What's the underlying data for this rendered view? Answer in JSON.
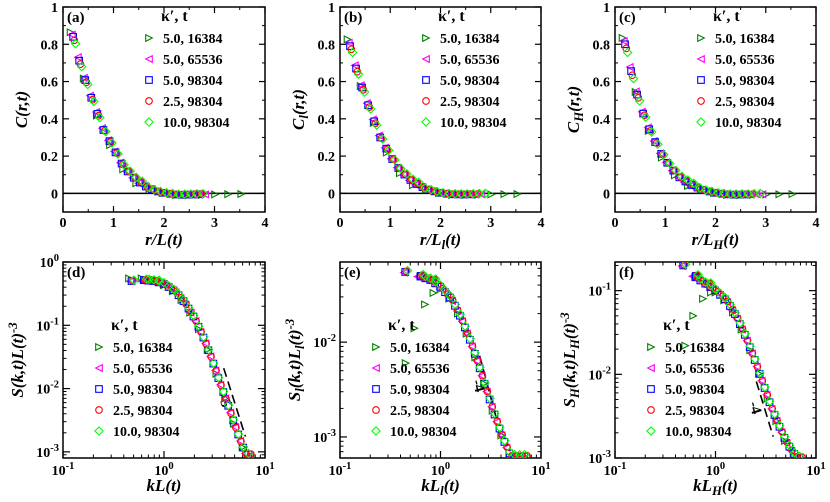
{
  "chart_data": {
    "type": "scatter",
    "legend_title": "κ′, t",
    "series": [
      {
        "name": "5.0, 16384",
        "color": "#008000",
        "marker": "triangle-right"
      },
      {
        "name": "5.0, 65536",
        "color": "#ff00ff",
        "marker": "triangle-left"
      },
      {
        "name": "5.0, 98304",
        "color": "#0000ff",
        "marker": "square"
      },
      {
        "name": "2.5, 98304",
        "color": "#ff0000",
        "marker": "circle"
      },
      {
        "name": "10.0, 98304",
        "color": "#00ff00",
        "marker": "diamond"
      }
    ],
    "panels": [
      {
        "label": "(a)",
        "scale": "linear",
        "xlabel": "r/L(t)",
        "ylabel": "C(r,t)",
        "xlim": [
          0,
          4
        ],
        "ylim": [
          -0.1,
          1
        ],
        "xticks": [
          "0",
          "1",
          "2",
          "3",
          "4"
        ],
        "yticks": [
          "0",
          "0.2",
          "0.4",
          "0.6",
          "0.8",
          "1"
        ],
        "curve": [
          [
            0,
            1.0
          ],
          [
            0.2,
            0.84
          ],
          [
            0.35,
            0.68
          ],
          [
            0.55,
            0.52
          ],
          [
            0.8,
            0.34
          ],
          [
            1.0,
            0.24
          ],
          [
            1.2,
            0.14
          ],
          [
            1.45,
            0.07
          ],
          [
            1.65,
            0.035
          ],
          [
            1.85,
            0.012
          ],
          [
            2.05,
            0.0
          ],
          [
            2.3,
            -0.008
          ],
          [
            2.6,
            -0.006
          ],
          [
            2.9,
            -0.003
          ],
          [
            3.3,
            -0.001
          ],
          [
            3.7,
            0.0
          ]
        ],
        "xmax": [
          3.7,
          2.9,
          2.75,
          2.8,
          2.8
        ]
      },
      {
        "label": "(b)",
        "scale": "linear",
        "xlabel": "r/L_l(t)",
        "ylabel": "C_l(r,t)",
        "xlim": [
          0,
          4
        ],
        "ylim": [
          -0.1,
          1
        ],
        "xticks": [
          "0",
          "1",
          "2",
          "3",
          "4"
        ],
        "yticks": [
          "0",
          "0.2",
          "0.4",
          "0.6",
          "0.8",
          "1"
        ],
        "curve": [
          [
            0,
            1.0
          ],
          [
            0.2,
            0.79
          ],
          [
            0.35,
            0.64
          ],
          [
            0.55,
            0.48
          ],
          [
            0.8,
            0.3
          ],
          [
            1.0,
            0.2
          ],
          [
            1.2,
            0.12
          ],
          [
            1.45,
            0.06
          ],
          [
            1.7,
            0.025
          ],
          [
            1.95,
            0.005
          ],
          [
            2.2,
            -0.005
          ],
          [
            2.5,
            -0.006
          ],
          [
            2.8,
            -0.004
          ],
          [
            3.2,
            -0.001
          ],
          [
            3.7,
            0.0
          ]
        ],
        "xmax": [
          3.7,
          2.9,
          2.6,
          2.8,
          2.9
        ]
      },
      {
        "label": "(c)",
        "scale": "linear",
        "xlabel": "r/L_H(t)",
        "ylabel": "C_H(r,t)",
        "xlim": [
          0,
          4
        ],
        "ylim": [
          -0.1,
          1
        ],
        "xticks": [
          "0",
          "1",
          "2",
          "3",
          "4"
        ],
        "yticks": [
          "0",
          "0.2",
          "0.4",
          "0.6",
          "0.8",
          "1"
        ],
        "curve": [
          [
            0,
            1.0
          ],
          [
            0.2,
            0.8
          ],
          [
            0.35,
            0.62
          ],
          [
            0.5,
            0.47
          ],
          [
            0.7,
            0.33
          ],
          [
            0.9,
            0.22
          ],
          [
            1.1,
            0.14
          ],
          [
            1.3,
            0.08
          ],
          [
            1.55,
            0.04
          ],
          [
            1.8,
            0.015
          ],
          [
            2.05,
            0.0
          ],
          [
            2.3,
            -0.007
          ],
          [
            2.6,
            -0.006
          ],
          [
            3.0,
            -0.003
          ],
          [
            3.7,
            0.0
          ]
        ],
        "xmax": [
          3.7,
          3.0,
          2.6,
          2.8,
          2.9
        ]
      },
      {
        "label": "(d)",
        "scale": "log",
        "xlabel": "kL(t)",
        "ylabel": "S(k,t)L(t)^-3",
        "xlim": [
          0.1,
          10
        ],
        "ylim": [
          0.0008,
          1
        ],
        "xticks": [
          "10^-1",
          "10^0",
          "10^1"
        ],
        "yticks": [
          "10^-3",
          "10^-2",
          "10^-1",
          "10^0"
        ],
        "curve": [
          [
            0.45,
            0.5
          ],
          [
            0.6,
            0.52
          ],
          [
            0.8,
            0.5
          ],
          [
            1.0,
            0.45
          ],
          [
            1.3,
            0.34
          ],
          [
            1.6,
            0.23
          ],
          [
            2.0,
            0.13
          ],
          [
            2.5,
            0.06
          ],
          [
            3.0,
            0.028
          ],
          [
            3.6,
            0.012
          ],
          [
            4.3,
            0.0055
          ],
          [
            5.0,
            0.0027
          ],
          [
            5.8,
            0.0014
          ],
          [
            6.5,
            0.0009
          ]
        ],
        "lowk": [
          [
            0.45,
            0.55
          ],
          [
            0.6,
            0.55
          ],
          [
            0.8,
            0.52
          ],
          [
            1.0,
            0.48
          ]
        ],
        "slope": {
          "label": "-5",
          "from": [
            3.9,
            0.021
          ],
          "to": [
            6.4,
            0.00175
          ]
        }
      },
      {
        "label": "(e)",
        "scale": "log",
        "xlabel": "kL_l(t)",
        "ylabel": "S_l(k,t)L_l(t)^-3",
        "xlim": [
          0.1,
          10
        ],
        "ylim": [
          0.0006,
          0.07
        ],
        "xticks": [
          "10^-1",
          "10^0",
          "10^1"
        ],
        "yticks": [
          "10^-3",
          "10^-2"
        ],
        "curve": [
          [
            0.42,
            0.055
          ],
          [
            0.6,
            0.05
          ],
          [
            0.8,
            0.045
          ],
          [
            1.0,
            0.038
          ],
          [
            1.3,
            0.028
          ],
          [
            1.6,
            0.018
          ],
          [
            2.0,
            0.01
          ],
          [
            2.5,
            0.005
          ],
          [
            3.0,
            0.0027
          ],
          [
            3.6,
            0.0015
          ],
          [
            4.3,
            0.0009
          ],
          [
            5.0,
            0.00062
          ]
        ],
        "lowk": [
          [
            0.45,
            0.006
          ],
          [
            0.55,
            0.014
          ],
          [
            0.7,
            0.025
          ],
          [
            0.85,
            0.033
          ]
        ],
        "slope": {
          "label": "-4",
          "from": [
            2.45,
            0.0072
          ],
          "to": [
            3.6,
            0.00157
          ]
        }
      },
      {
        "label": "(f)",
        "scale": "log",
        "xlabel": "kL_H(t)",
        "ylabel": "S_H(k,t)L_H(t)^-3",
        "xlim": [
          0.1,
          10
        ],
        "ylim": [
          0.001,
          0.22
        ],
        "xticks": [
          "10^-1",
          "10^0",
          "10^1"
        ],
        "yticks": [
          "10^-3",
          "10^-2",
          "10^-1"
        ],
        "curve": [
          [
            0.45,
            0.2
          ],
          [
            0.6,
            0.15
          ],
          [
            0.8,
            0.12
          ],
          [
            1.0,
            0.1
          ],
          [
            1.3,
            0.075
          ],
          [
            1.6,
            0.05
          ],
          [
            2.0,
            0.028
          ],
          [
            2.5,
            0.014
          ],
          [
            3.0,
            0.0075
          ],
          [
            3.6,
            0.004
          ],
          [
            4.3,
            0.0024
          ],
          [
            5.0,
            0.0016
          ],
          [
            5.8,
            0.0012
          ],
          [
            6.5,
            0.001
          ]
        ],
        "lowk": [
          [
            0.5,
            0.022
          ],
          [
            0.6,
            0.05
          ],
          [
            0.75,
            0.08
          ],
          [
            0.9,
            0.095
          ]
        ],
        "slope": {
          "label": "-4",
          "from": [
            2.55,
            0.0082
          ],
          "to": [
            3.75,
            0.0018
          ]
        }
      }
    ]
  }
}
